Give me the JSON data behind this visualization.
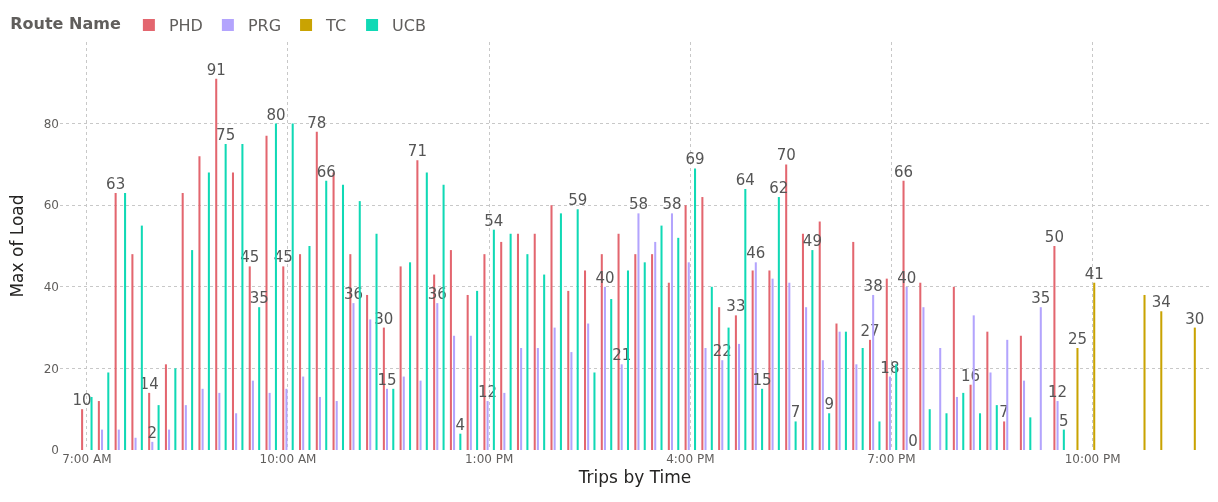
{
  "chart_data": {
    "type": "bar",
    "xlabel": "Trips by Time",
    "ylabel": "Max of Load",
    "legend_title": "Route Name",
    "legend": "top left",
    "grid": true,
    "x": [
      7,
      7.25,
      7.5,
      7.75,
      8,
      8.25,
      8.5,
      8.75,
      9,
      9.25,
      9.5,
      9.75,
      10,
      10.25,
      10.5,
      10.75,
      11,
      11.25,
      11.5,
      11.75,
      12,
      12.25,
      12.5,
      12.75,
      13,
      13.25,
      13.5,
      13.75,
      14,
      14.25,
      14.5,
      14.75,
      15,
      15.25,
      15.5,
      15.75,
      16,
      16.25,
      16.5,
      16.75,
      17,
      17.25,
      17.5,
      17.75,
      18,
      18.25,
      18.5,
      18.75,
      19,
      19.25,
      19.5,
      19.75,
      20,
      20.25,
      20.5,
      20.75,
      21,
      21.25,
      21.5,
      21.75,
      22,
      22.25,
      22.5,
      22.75,
      23,
      23.25,
      23.5
    ],
    "xlim": [
      6.6,
      23.75
    ],
    "xticks": [
      {
        "value": 7,
        "label": "7:00 AM"
      },
      {
        "value": 10,
        "label": "10:00 AM"
      },
      {
        "value": 13,
        "label": "1:00 PM"
      },
      {
        "value": 16,
        "label": "4:00 PM"
      },
      {
        "value": 19,
        "label": "7:00 PM"
      },
      {
        "value": 22,
        "label": "10:00 PM"
      }
    ],
    "ylim": [
      0,
      100
    ],
    "yticks": [
      0,
      20,
      40,
      60,
      80
    ],
    "series": [
      {
        "name": "PHD",
        "color": "#e3666f",
        "values": [
          10,
          12,
          63,
          48,
          14,
          21,
          63,
          72,
          91,
          68,
          45,
          77,
          45,
          48,
          78,
          68,
          48,
          38,
          30,
          45,
          71,
          43,
          49,
          38,
          48,
          51,
          53,
          53,
          60,
          39,
          44,
          48,
          53,
          48,
          48,
          41,
          60,
          62,
          35,
          33,
          44,
          44,
          70,
          53,
          56,
          31,
          51,
          27,
          42,
          66,
          41,
          null,
          40,
          16,
          29,
          7,
          28,
          null,
          50,
          null,
          null,
          null,
          null,
          null,
          null,
          null,
          null
        ],
        "value_labels": [
          "10",
          null,
          "63",
          null,
          "14",
          null,
          null,
          null,
          "91",
          null,
          "45",
          null,
          "45",
          null,
          "78",
          null,
          null,
          null,
          "30",
          null,
          "71",
          null,
          null,
          null,
          null,
          null,
          null,
          null,
          null,
          null,
          null,
          null,
          null,
          null,
          null,
          null,
          null,
          null,
          null,
          "33",
          null,
          null,
          "70",
          null,
          null,
          null,
          null,
          "27",
          null,
          "66",
          null,
          null,
          null,
          "16",
          null,
          "7",
          null,
          null,
          "50",
          null,
          null,
          null,
          null,
          null,
          null,
          null,
          null
        ]
      },
      {
        "name": "PRG",
        "color": "#b3a4fd",
        "values": [
          null,
          5,
          5,
          3,
          2,
          5,
          11,
          15,
          14,
          9,
          17,
          14,
          15,
          18,
          13,
          12,
          36,
          32,
          15,
          18,
          17,
          36,
          28,
          28,
          12,
          14,
          25,
          25,
          30,
          24,
          31,
          40,
          21,
          58,
          51,
          58,
          46,
          25,
          22,
          26,
          46,
          42,
          41,
          35,
          22,
          29,
          21,
          38,
          18,
          40,
          35,
          25,
          13,
          33,
          19,
          27,
          17,
          35,
          12,
          null,
          null,
          null,
          null,
          null,
          null,
          null,
          null
        ],
        "value_labels": [
          null,
          null,
          null,
          null,
          "2",
          null,
          null,
          null,
          null,
          null,
          null,
          null,
          null,
          null,
          null,
          null,
          "36",
          null,
          "15",
          null,
          null,
          "36",
          null,
          null,
          "12",
          null,
          null,
          null,
          null,
          null,
          null,
          "40",
          "21",
          "58",
          null,
          "58",
          null,
          null,
          "22",
          null,
          "46",
          null,
          null,
          null,
          null,
          null,
          null,
          "38",
          "18",
          "40",
          null,
          null,
          null,
          null,
          null,
          null,
          null,
          "35",
          "12",
          null,
          null,
          null,
          null,
          null,
          null,
          null,
          null
        ]
      },
      {
        "name": "TC",
        "color": "#c9a302",
        "values": [
          null,
          null,
          null,
          null,
          null,
          null,
          null,
          null,
          null,
          null,
          null,
          null,
          null,
          null,
          null,
          null,
          null,
          null,
          null,
          null,
          null,
          null,
          null,
          null,
          null,
          null,
          null,
          null,
          null,
          null,
          null,
          null,
          null,
          null,
          null,
          null,
          null,
          null,
          null,
          null,
          null,
          null,
          null,
          null,
          null,
          null,
          null,
          null,
          null,
          null,
          null,
          null,
          null,
          null,
          null,
          null,
          null,
          null,
          null,
          25,
          41,
          null,
          null,
          38,
          34,
          null,
          30
        ],
        "value_labels": [
          null,
          null,
          null,
          null,
          null,
          null,
          null,
          null,
          null,
          null,
          null,
          null,
          null,
          null,
          null,
          null,
          null,
          null,
          null,
          null,
          null,
          null,
          null,
          null,
          null,
          null,
          null,
          null,
          null,
          null,
          null,
          null,
          null,
          null,
          null,
          null,
          null,
          null,
          null,
          null,
          null,
          null,
          null,
          null,
          null,
          null,
          null,
          null,
          null,
          null,
          null,
          null,
          null,
          null,
          null,
          null,
          null,
          null,
          null,
          "25",
          "41",
          null,
          null,
          null,
          "34",
          null,
          "30"
        ]
      },
      {
        "name": "UCB",
        "color": "#10d9b5",
        "values": [
          13,
          19,
          63,
          55,
          11,
          20,
          49,
          68,
          75,
          75,
          35,
          80,
          80,
          50,
          66,
          65,
          61,
          53,
          15,
          46,
          68,
          65,
          4,
          39,
          54,
          53,
          48,
          43,
          58,
          59,
          19,
          37,
          44,
          46,
          55,
          52,
          69,
          40,
          30,
          64,
          15,
          62,
          7,
          49,
          9,
          29,
          25,
          7,
          21,
          0,
          10,
          9,
          14,
          9,
          11,
          null,
          8,
          null,
          5,
          null,
          null,
          null,
          null,
          null,
          null,
          null,
          null
        ],
        "value_labels": [
          null,
          null,
          null,
          null,
          null,
          null,
          null,
          null,
          "75",
          null,
          "35",
          "80",
          null,
          null,
          "66",
          null,
          null,
          null,
          null,
          null,
          null,
          null,
          "4",
          null,
          "54",
          null,
          null,
          null,
          null,
          "59",
          null,
          null,
          null,
          null,
          null,
          null,
          "69",
          null,
          null,
          "64",
          "15",
          "62",
          "7",
          "49",
          "9",
          null,
          null,
          null,
          null,
          "0",
          null,
          null,
          null,
          null,
          null,
          null,
          null,
          null,
          "5",
          null,
          null,
          null,
          null,
          null,
          null,
          null,
          null
        ]
      }
    ]
  }
}
